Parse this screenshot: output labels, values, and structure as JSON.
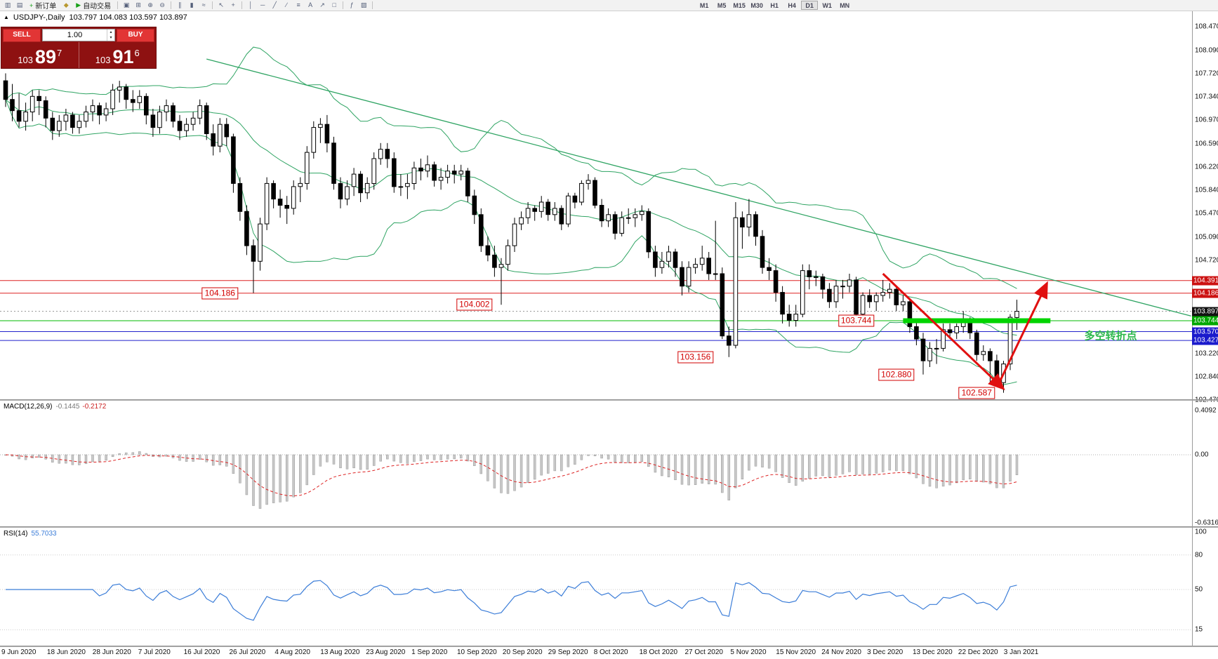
{
  "toolbar": {
    "items": [
      {
        "type": "icon",
        "name": "new-chart-icon",
        "glyph": "▥"
      },
      {
        "type": "icon",
        "name": "chart-profiles-icon",
        "glyph": "▤"
      },
      {
        "type": "button",
        "name": "new-order-button",
        "glyph": "+",
        "glyph_color": "#18a018",
        "label": "新订单"
      },
      {
        "type": "icon",
        "name": "market-depth-icon",
        "glyph": "◆",
        "color": "#b8982f"
      },
      {
        "type": "button",
        "name": "auto-trading-button",
        "glyph": "▶",
        "glyph_color": "#18a018",
        "label": "自动交易"
      },
      {
        "type": "sep"
      },
      {
        "type": "icon",
        "name": "cascade-windows-icon",
        "glyph": "▣"
      },
      {
        "type": "icon",
        "name": "tile-windows-icon",
        "glyph": "⊞"
      },
      {
        "type": "icon",
        "name": "zoom-in-icon",
        "glyph": "⊕"
      },
      {
        "type": "icon",
        "name": "zoom-out-icon",
        "glyph": "⊖"
      },
      {
        "type": "sep"
      },
      {
        "type": "icon",
        "name": "bar-chart-type-icon",
        "glyph": "∥"
      },
      {
        "type": "icon",
        "name": "candlestick-chart-type-icon",
        "glyph": "▮"
      },
      {
        "type": "icon",
        "name": "line-chart-type-icon",
        "glyph": "≈"
      },
      {
        "type": "sep"
      },
      {
        "type": "icon",
        "name": "cursor-icon",
        "glyph": "↖"
      },
      {
        "type": "icon",
        "name": "crosshair-icon",
        "glyph": "+"
      },
      {
        "type": "sep"
      },
      {
        "type": "icon",
        "name": "vertical-line-icon",
        "glyph": "│"
      },
      {
        "type": "icon",
        "name": "horizontal-line-icon",
        "glyph": "─"
      },
      {
        "type": "icon",
        "name": "trendline-icon",
        "glyph": "╱"
      },
      {
        "type": "icon",
        "name": "channel-icon",
        "glyph": "∕"
      },
      {
        "type": "icon",
        "name": "fibonacci-icon",
        "glyph": "≡"
      },
      {
        "type": "icon",
        "name": "text-label-icon",
        "glyph": "A"
      },
      {
        "type": "icon",
        "name": "arrow-tool-icon",
        "glyph": "↗"
      },
      {
        "type": "icon",
        "name": "shapes-icon",
        "glyph": "□"
      },
      {
        "type": "sep"
      },
      {
        "type": "icon",
        "name": "indicators-icon",
        "glyph": "ƒ"
      },
      {
        "type": "icon",
        "name": "templates-icon",
        "glyph": "▨"
      },
      {
        "type": "sep"
      },
      {
        "type": "space"
      }
    ],
    "timeframes": [
      "M1",
      "M5",
      "M15",
      "M30",
      "H1",
      "H4",
      "D1",
      "W1",
      "MN"
    ],
    "active_timeframe": "D1"
  },
  "chart_header": {
    "marker": "▲",
    "symbol": "USDJPY-,Daily",
    "ohlc": "103.797 104.083 103.597 103.897"
  },
  "trade_panel": {
    "sell_label": "SELL",
    "buy_label": "BUY",
    "volume": "1.00",
    "spin_up": "▴",
    "spin_down": "▾",
    "sell_price": {
      "prefix": "103",
      "big": "89",
      "sup": "7"
    },
    "buy_price": {
      "prefix": "103",
      "big": "91",
      "sup": "6"
    }
  },
  "price_axis": {
    "ticks": [
      "108.470",
      "108.090",
      "107.720",
      "107.340",
      "106.970",
      "106.590",
      "106.220",
      "105.840",
      "105.470",
      "105.090",
      "104.720",
      "103.220",
      "102.840",
      "102.470"
    ],
    "badges": [
      {
        "label": "104.391",
        "value": 104.391,
        "color": "#cc1111"
      },
      {
        "label": "104.186",
        "value": 104.186,
        "color": "#cc1111"
      },
      {
        "label": "103.897",
        "value": 103.897,
        "color": "#111111"
      },
      {
        "label": "103.744",
        "value": 103.744,
        "color": "#00a800"
      },
      {
        "label": "103.570",
        "value": 103.57,
        "color": "#1a1acc"
      },
      {
        "label": "103.427",
        "value": 103.427,
        "color": "#1a1acc"
      }
    ]
  },
  "hlines": [
    {
      "value": 104.391,
      "color": "#dd2222"
    },
    {
      "value": 104.186,
      "color": "#dd2222"
    },
    {
      "value": 103.744,
      "color": "#00bb00"
    },
    {
      "value": 103.57,
      "color": "#2222cc"
    },
    {
      "value": 103.427,
      "color": "#2222cc"
    }
  ],
  "current_price": {
    "value": 103.897,
    "label": "103.897"
  },
  "highlight_bar": {
    "i1": 134,
    "i2": 156,
    "value": 103.744,
    "thickness": 7,
    "color": "#00d400"
  },
  "trendline": {
    "i1": 30,
    "p1": 107.95,
    "i2": 177,
    "p2": 103.82,
    "color": "#2fa463"
  },
  "arrows": [
    {
      "i1": 131,
      "p1": 104.5,
      "i2": 149,
      "p2": 102.65
    },
    {
      "i1": 148.5,
      "p1": 102.78,
      "i2": 155.5,
      "p2": 104.35
    }
  ],
  "annotations": [
    {
      "text": "104.186",
      "i": 32,
      "p": 104.186,
      "style": "box"
    },
    {
      "text": "104.002",
      "i": 70,
      "p": 104.002,
      "style": "box"
    },
    {
      "text": "103.744",
      "i": 127,
      "p": 103.744,
      "style": "box"
    },
    {
      "text": "103.156",
      "i": 103,
      "p": 103.156,
      "style": "box"
    },
    {
      "text": "102.880",
      "i": 133,
      "p": 102.88,
      "style": "box"
    },
    {
      "text": "102.587",
      "i": 145,
      "p": 102.587,
      "style": "box"
    },
    {
      "text": "多空转折点",
      "i": 165,
      "p": 103.5,
      "style": "green-text"
    }
  ],
  "macd": {
    "title": "MACD(12,26,9)",
    "value_main": "-0.1445",
    "value_signal": "-0.2172",
    "fast": 12,
    "slow": 26,
    "smooth": 9,
    "axis": [
      {
        "label": "0.4092",
        "value": 0.4092
      },
      {
        "label": "0.00",
        "value": 0
      },
      {
        "label": "-0.6316",
        "value": -0.6316
      }
    ]
  },
  "rsi": {
    "title": "RSI(14)",
    "value": "55.7033",
    "period": 14,
    "levels": [
      80,
      50,
      15
    ],
    "axis": [
      {
        "label": "100",
        "value": 100
      },
      {
        "label": "80",
        "value": 80
      },
      {
        "label": "50",
        "value": 50
      },
      {
        "label": "15",
        "value": 15
      }
    ]
  },
  "date_axis": [
    "9 Jun 2020",
    "18 Jun 2020",
    "28 Jun 2020",
    "7 Jul 2020",
    "16 Jul 2020",
    "26 Jul 2020",
    "4 Aug 2020",
    "13 Aug 2020",
    "23 Aug 2020",
    "1 Sep 2020",
    "10 Sep 2020",
    "20 Sep 2020",
    "29 Sep 2020",
    "8 Oct 2020",
    "18 Oct 2020",
    "27 Oct 2020",
    "5 Nov 2020",
    "15 Nov 2020",
    "24 Nov 2020",
    "3 Dec 2020",
    "13 Dec 2020",
    "22 Dec 2020",
    "3 Jan 2021"
  ],
  "colors": {
    "up": "#ffffff",
    "down": "#000000",
    "outline": "#000000",
    "bollinger": "#2fa463",
    "macd_hist": "#c8c8c8",
    "macd_signal": "#dd2222",
    "rsi": "#3b7dd8",
    "arrow": "#e01010",
    "accent_red": "#cc1111",
    "accent_green": "#00bb00",
    "accent_blue": "#2222cc",
    "panel_red": "#8e1111",
    "button_red": "#e23535"
  },
  "chart_data": {
    "type": "candlestick",
    "symbol": "USDJPY",
    "timeframe": "Daily",
    "price_range": [
      102.47,
      108.47
    ],
    "indicators": [
      "Bollinger Bands(20,2)",
      "MACD(12,26,9)",
      "RSI(14)"
    ],
    "ohlc": [
      [
        107.6,
        107.72,
        107.18,
        107.3
      ],
      [
        107.3,
        107.55,
        106.95,
        107.12
      ],
      [
        107.12,
        107.4,
        106.85,
        106.95
      ],
      [
        106.95,
        107.25,
        106.8,
        107.1
      ],
      [
        107.1,
        107.45,
        106.95,
        107.35
      ],
      [
        107.35,
        107.45,
        107.05,
        107.28
      ],
      [
        107.28,
        107.35,
        106.85,
        107.0
      ],
      [
        107.0,
        107.1,
        106.65,
        106.8
      ],
      [
        106.8,
        107.05,
        106.7,
        106.95
      ],
      [
        106.95,
        107.15,
        106.8,
        107.05
      ],
      [
        107.05,
        107.1,
        106.75,
        106.85
      ],
      [
        106.85,
        107.05,
        106.75,
        106.95
      ],
      [
        106.95,
        107.2,
        106.85,
        107.1
      ],
      [
        107.1,
        107.3,
        106.95,
        107.2
      ],
      [
        107.2,
        107.25,
        106.9,
        107.05
      ],
      [
        107.05,
        107.25,
        106.95,
        107.15
      ],
      [
        107.15,
        107.55,
        107.05,
        107.45
      ],
      [
        107.45,
        107.6,
        107.25,
        107.5
      ],
      [
        107.5,
        107.55,
        107.15,
        107.3
      ],
      [
        107.3,
        107.45,
        107.1,
        107.25
      ],
      [
        107.25,
        107.45,
        107.15,
        107.35
      ],
      [
        107.35,
        107.4,
        106.9,
        107.05
      ],
      [
        107.05,
        107.15,
        106.7,
        106.85
      ],
      [
        106.85,
        107.2,
        106.75,
        107.1
      ],
      [
        107.1,
        107.3,
        106.95,
        107.2
      ],
      [
        107.2,
        107.25,
        106.85,
        106.95
      ],
      [
        106.95,
        107.05,
        106.65,
        106.8
      ],
      [
        106.8,
        107.0,
        106.7,
        106.9
      ],
      [
        106.9,
        107.1,
        106.8,
        107.0
      ],
      [
        107.0,
        107.3,
        106.9,
        107.2
      ],
      [
        107.2,
        107.25,
        106.65,
        106.75
      ],
      [
        106.75,
        106.9,
        106.4,
        106.55
      ],
      [
        106.55,
        107.0,
        106.45,
        106.9
      ],
      [
        106.9,
        107.0,
        106.55,
        106.7
      ],
      [
        106.7,
        106.75,
        105.8,
        105.95
      ],
      [
        105.95,
        106.05,
        105.35,
        105.5
      ],
      [
        105.5,
        105.6,
        104.8,
        104.95
      ],
      [
        104.95,
        105.05,
        104.19,
        104.7
      ],
      [
        104.7,
        105.4,
        104.55,
        105.3
      ],
      [
        105.3,
        106.05,
        105.2,
        105.95
      ],
      [
        105.95,
        106.0,
        105.55,
        105.7
      ],
      [
        105.7,
        105.85,
        105.4,
        105.6
      ],
      [
        105.6,
        105.75,
        105.3,
        105.55
      ],
      [
        105.55,
        106.0,
        105.45,
        105.9
      ],
      [
        105.9,
        106.05,
        105.65,
        105.95
      ],
      [
        105.95,
        106.55,
        105.85,
        106.45
      ],
      [
        106.45,
        106.95,
        106.35,
        106.85
      ],
      [
        106.85,
        107.0,
        106.6,
        106.9
      ],
      [
        106.9,
        107.05,
        106.45,
        106.6
      ],
      [
        106.6,
        106.7,
        105.85,
        105.95
      ],
      [
        105.95,
        106.05,
        105.55,
        105.7
      ],
      [
        105.7,
        106.0,
        105.6,
        105.9
      ],
      [
        105.9,
        106.2,
        105.75,
        106.1
      ],
      [
        106.1,
        106.15,
        105.65,
        105.8
      ],
      [
        105.8,
        106.05,
        105.7,
        105.95
      ],
      [
        105.95,
        106.45,
        105.85,
        106.35
      ],
      [
        106.35,
        106.6,
        106.25,
        106.5
      ],
      [
        106.5,
        106.6,
        106.2,
        106.35
      ],
      [
        106.35,
        106.45,
        105.8,
        105.9
      ],
      [
        105.9,
        106.1,
        105.75,
        105.9
      ],
      [
        105.9,
        106.1,
        105.7,
        105.95
      ],
      [
        105.95,
        106.3,
        105.85,
        106.2
      ],
      [
        106.2,
        106.35,
        106.0,
        106.15
      ],
      [
        106.15,
        106.4,
        106.05,
        106.25
      ],
      [
        106.25,
        106.3,
        105.9,
        106.0
      ],
      [
        106.0,
        106.2,
        105.85,
        106.05
      ],
      [
        106.05,
        106.25,
        105.95,
        106.15
      ],
      [
        106.15,
        106.25,
        105.95,
        106.1
      ],
      [
        106.1,
        106.25,
        106.0,
        106.15
      ],
      [
        106.15,
        106.2,
        105.65,
        105.75
      ],
      [
        105.75,
        105.85,
        105.3,
        105.45
      ],
      [
        105.45,
        105.55,
        104.85,
        104.95
      ],
      [
        104.95,
        105.1,
        104.7,
        104.8
      ],
      [
        104.8,
        104.95,
        104.45,
        104.6
      ],
      [
        104.6,
        104.75,
        104.0,
        104.65
      ],
      [
        104.65,
        105.05,
        104.55,
        104.95
      ],
      [
        104.95,
        105.4,
        104.85,
        105.3
      ],
      [
        105.3,
        105.5,
        105.2,
        105.4
      ],
      [
        105.4,
        105.65,
        105.3,
        105.55
      ],
      [
        105.55,
        105.6,
        105.35,
        105.5
      ],
      [
        105.5,
        105.75,
        105.4,
        105.65
      ],
      [
        105.65,
        105.7,
        105.35,
        105.45
      ],
      [
        105.45,
        105.65,
        105.35,
        105.55
      ],
      [
        105.55,
        105.6,
        105.2,
        105.3
      ],
      [
        105.3,
        105.8,
        105.25,
        105.75
      ],
      [
        105.75,
        105.8,
        105.55,
        105.65
      ],
      [
        105.65,
        106.0,
        105.6,
        105.95
      ],
      [
        105.95,
        106.1,
        105.85,
        106.0
      ],
      [
        106.0,
        106.05,
        105.55,
        105.6
      ],
      [
        105.6,
        105.7,
        105.25,
        105.35
      ],
      [
        105.35,
        105.55,
        105.25,
        105.45
      ],
      [
        105.45,
        105.5,
        105.05,
        105.15
      ],
      [
        105.15,
        105.5,
        105.1,
        105.4
      ],
      [
        105.4,
        105.55,
        105.3,
        105.4
      ],
      [
        105.4,
        105.55,
        105.25,
        105.45
      ],
      [
        105.45,
        105.6,
        105.35,
        105.5
      ],
      [
        105.5,
        105.55,
        104.75,
        104.85
      ],
      [
        104.85,
        104.95,
        104.45,
        104.6
      ],
      [
        104.6,
        104.85,
        104.5,
        104.7
      ],
      [
        104.7,
        104.95,
        104.6,
        104.85
      ],
      [
        104.85,
        104.9,
        104.45,
        104.6
      ],
      [
        104.6,
        104.7,
        104.15,
        104.3
      ],
      [
        104.3,
        104.7,
        104.2,
        104.6
      ],
      [
        104.6,
        104.75,
        104.5,
        104.65
      ],
      [
        104.65,
        104.95,
        104.55,
        104.75
      ],
      [
        104.75,
        104.85,
        104.4,
        104.5
      ],
      [
        104.5,
        105.35,
        104.4,
        104.5
      ],
      [
        104.5,
        104.6,
        103.45,
        103.5
      ],
      [
        103.5,
        103.65,
        103.16,
        103.35
      ],
      [
        103.35,
        105.65,
        103.3,
        105.4
      ],
      [
        105.4,
        105.5,
        104.9,
        105.25
      ],
      [
        105.25,
        105.7,
        105.1,
        105.45
      ],
      [
        105.45,
        105.5,
        104.95,
        105.1
      ],
      [
        105.1,
        105.2,
        104.5,
        104.6
      ],
      [
        104.6,
        104.75,
        104.4,
        104.55
      ],
      [
        104.55,
        104.65,
        104.05,
        104.2
      ],
      [
        104.2,
        104.3,
        103.7,
        103.85
      ],
      [
        103.85,
        104.0,
        103.65,
        103.75
      ],
      [
        103.75,
        104.0,
        103.65,
        103.85
      ],
      [
        103.85,
        104.65,
        103.8,
        104.55
      ],
      [
        104.55,
        104.65,
        104.25,
        104.45
      ],
      [
        104.45,
        104.55,
        104.3,
        104.45
      ],
      [
        104.45,
        104.5,
        104.1,
        104.25
      ],
      [
        104.25,
        104.35,
        103.95,
        104.05
      ],
      [
        104.05,
        104.4,
        103.95,
        104.3
      ],
      [
        104.3,
        104.4,
        104.1,
        104.3
      ],
      [
        104.3,
        104.5,
        104.2,
        104.4
      ],
      [
        104.4,
        104.45,
        103.8,
        103.85
      ],
      [
        103.85,
        104.2,
        103.75,
        104.15
      ],
      [
        104.15,
        104.25,
        103.95,
        104.05
      ],
      [
        104.05,
        104.2,
        103.9,
        104.15
      ],
      [
        104.15,
        104.4,
        104.05,
        104.2
      ],
      [
        104.2,
        104.35,
        104.1,
        104.25
      ],
      [
        104.25,
        104.3,
        103.9,
        104.0
      ],
      [
        104.0,
        104.15,
        103.9,
        104.05
      ],
      [
        104.05,
        104.1,
        103.55,
        103.65
      ],
      [
        103.65,
        103.75,
        103.35,
        103.45
      ],
      [
        103.45,
        103.55,
        102.88,
        103.1
      ],
      [
        103.1,
        103.4,
        103.0,
        103.3
      ],
      [
        103.3,
        103.45,
        103.05,
        103.3
      ],
      [
        103.3,
        103.7,
        103.25,
        103.6
      ],
      [
        103.6,
        103.7,
        103.45,
        103.55
      ],
      [
        103.55,
        103.7,
        103.45,
        103.65
      ],
      [
        103.65,
        103.9,
        103.55,
        103.75
      ],
      [
        103.75,
        103.8,
        103.45,
        103.55
      ],
      [
        103.55,
        103.6,
        103.1,
        103.2
      ],
      [
        103.2,
        103.35,
        103.1,
        103.25
      ],
      [
        103.25,
        103.3,
        102.72,
        103.1
      ],
      [
        103.1,
        103.2,
        102.7,
        102.75
      ],
      [
        102.75,
        103.1,
        102.587,
        103.05
      ],
      [
        103.05,
        103.85,
        102.95,
        103.8
      ],
      [
        103.797,
        104.083,
        103.597,
        103.897
      ]
    ]
  }
}
